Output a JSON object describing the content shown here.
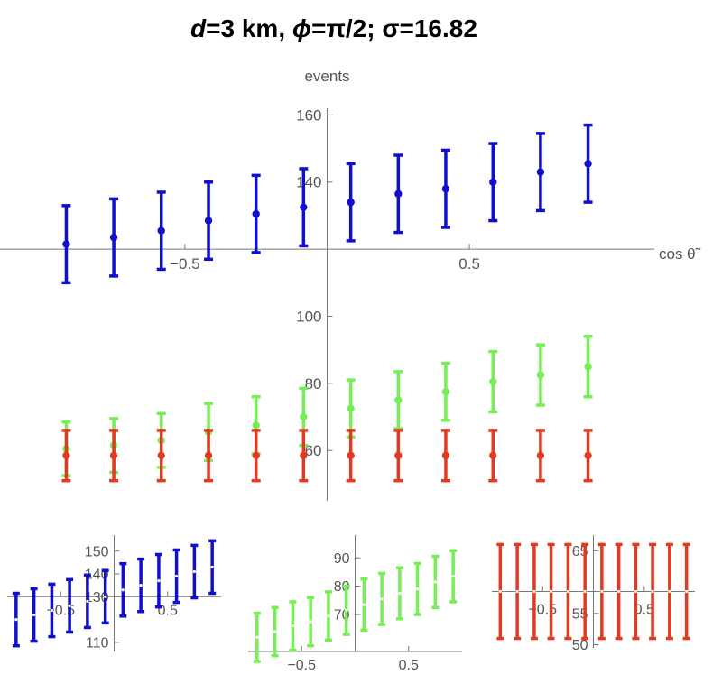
{
  "title": {
    "d_label": "d",
    "d_value": "=3 km, ",
    "phi_label": "ϕ",
    "phi_value": "=π/2; σ=16.82"
  },
  "colors": {
    "blue": "#1010cc",
    "green": "#77ee55",
    "red": "#e03a22",
    "axis": "#777777",
    "tick_text": "#555555"
  },
  "chart_data": [
    {
      "type": "scatter",
      "title": "",
      "ylabel": "events",
      "xlabel": "cos θ̃",
      "xlim": [
        -1.15,
        1.15
      ],
      "ylim": [
        45,
        162
      ],
      "x_axis_at_y": 120,
      "xticks": [
        -0.5,
        0.5
      ],
      "yticks": [
        60,
        80,
        100,
        140,
        160
      ],
      "x": [
        -0.917,
        -0.75,
        -0.583,
        -0.417,
        -0.25,
        -0.083,
        0.083,
        0.25,
        0.417,
        0.583,
        0.75,
        0.917
      ],
      "series": [
        {
          "color": "blue",
          "values": [
            121.5,
            123.5,
            125.5,
            128.5,
            130.5,
            132.5,
            134,
            136.5,
            138,
            140,
            143,
            145.5
          ],
          "err_low": [
            11.5,
            11.5,
            11.5,
            11.5,
            11.5,
            11.5,
            11.5,
            11.5,
            11.5,
            11.5,
            11.5,
            11.5
          ],
          "err_high": [
            11.5,
            11.5,
            11.5,
            11.5,
            11.5,
            11.5,
            11.5,
            11.5,
            11.5,
            11.5,
            11.5,
            11.5
          ]
        },
        {
          "color": "green",
          "values": [
            60.5,
            61.5,
            63,
            65.5,
            67.5,
            70,
            72.5,
            75,
            77.5,
            80.5,
            82.5,
            85
          ],
          "err_low": [
            8,
            8,
            8,
            8.5,
            8.5,
            8.5,
            8.5,
            8.5,
            8.5,
            9,
            9,
            9
          ],
          "err_high": [
            8,
            8,
            8,
            8.5,
            8.5,
            8.5,
            8.5,
            8.5,
            8.5,
            9,
            9,
            9
          ]
        },
        {
          "color": "red",
          "values": [
            58.5,
            58.5,
            58.5,
            58.5,
            58.5,
            58.5,
            58.5,
            58.5,
            58.5,
            58.5,
            58.5,
            58.5
          ],
          "err_low": [
            7.5,
            7.5,
            7.5,
            7.5,
            7.5,
            7.5,
            7.5,
            7.5,
            7.5,
            7.5,
            7.5,
            7.5
          ],
          "err_high": [
            7.5,
            7.5,
            7.5,
            7.5,
            7.5,
            7.5,
            7.5,
            7.5,
            7.5,
            7.5,
            7.5,
            7.5
          ]
        }
      ]
    },
    {
      "type": "scatter",
      "title": "",
      "xlim": [
        -1.0,
        1.0
      ],
      "ylim": [
        106,
        157
      ],
      "x_axis_at_y": 130,
      "xticks": [
        -0.5,
        0.5
      ],
      "yticks": [
        110,
        130,
        140,
        150
      ],
      "x": [
        -0.917,
        -0.75,
        -0.583,
        -0.417,
        -0.25,
        -0.083,
        0.083,
        0.25,
        0.417,
        0.583,
        0.75,
        0.917
      ],
      "series": [
        {
          "color": "blue",
          "values": [
            120,
            122,
            124,
            126,
            128,
            130,
            133,
            135,
            137,
            139,
            141,
            143
          ],
          "err_low": [
            11.5,
            11.5,
            11.5,
            11.5,
            11.5,
            11.5,
            11.5,
            11.5,
            11.5,
            11.5,
            11.5,
            11.5
          ],
          "err_high": [
            11.5,
            11.5,
            11.5,
            11.5,
            11.5,
            11.5,
            11.5,
            11.5,
            11.5,
            11.5,
            11.5,
            11.5
          ]
        }
      ]
    },
    {
      "type": "scatter",
      "title": "",
      "xlim": [
        -1.0,
        1.0
      ],
      "ylim": [
        57,
        98
      ],
      "x_axis_at_y": 57,
      "xticks": [
        -0.5,
        0.5
      ],
      "yticks": [
        70,
        80,
        90
      ],
      "x": [
        -0.917,
        -0.75,
        -0.583,
        -0.417,
        -0.25,
        -0.083,
        0.083,
        0.25,
        0.417,
        0.583,
        0.75,
        0.917
      ],
      "series": [
        {
          "color": "green",
          "values": [
            62,
            64,
            66,
            67.5,
            69.5,
            71.5,
            73.5,
            75.5,
            77.5,
            79,
            81.5,
            83.5
          ],
          "err_low": [
            8.5,
            8.5,
            8.5,
            8.5,
            8.5,
            8.5,
            9,
            9,
            9,
            9,
            9,
            9
          ],
          "err_high": [
            8.5,
            8.5,
            8.5,
            8.5,
            8.5,
            8.5,
            9,
            9,
            9,
            9,
            9,
            9
          ]
        }
      ]
    },
    {
      "type": "scatter",
      "title": "",
      "xlim": [
        -1.0,
        1.0
      ],
      "ylim": [
        49.5,
        67.5
      ],
      "x_axis_at_y": 58.5,
      "xticks": [
        -0.5,
        0.5
      ],
      "yticks": [
        50,
        55,
        65
      ],
      "x": [
        -0.917,
        -0.75,
        -0.583,
        -0.417,
        -0.25,
        -0.083,
        0.083,
        0.25,
        0.417,
        0.583,
        0.75,
        0.917
      ],
      "series": [
        {
          "color": "red",
          "values": [
            58.5,
            58.5,
            58.5,
            58.5,
            58.5,
            58.5,
            58.5,
            58.5,
            58.5,
            58.5,
            58.5,
            58.5
          ],
          "err_low": [
            7.5,
            7.5,
            7.5,
            7.5,
            7.5,
            7.5,
            7.5,
            7.5,
            7.5,
            7.5,
            7.5,
            7.5
          ],
          "err_high": [
            7.5,
            7.5,
            7.5,
            7.5,
            7.5,
            7.5,
            7.5,
            7.5,
            7.5,
            7.5,
            7.5,
            7.5
          ]
        }
      ]
    }
  ]
}
